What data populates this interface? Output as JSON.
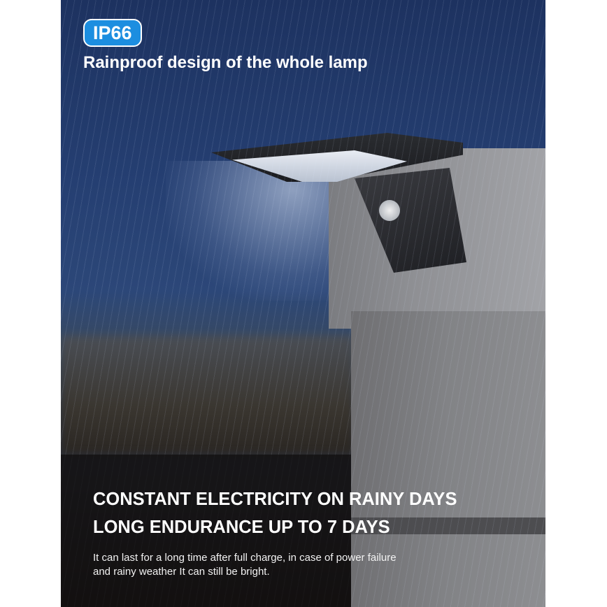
{
  "badge": {
    "label": "IP66",
    "color": "#1c8ee0"
  },
  "subtitle": "Rainproof design of the whole lamp",
  "headline": {
    "line1": "CONSTANT ELECTRICITY ON RAINY DAYS",
    "line2": "LONG ENDURANCE UP TO 7 DAYS"
  },
  "description": {
    "line1": "It can last for a long time after full charge, in case of power failure",
    "line2": "and rainy weather It can still be bright."
  }
}
